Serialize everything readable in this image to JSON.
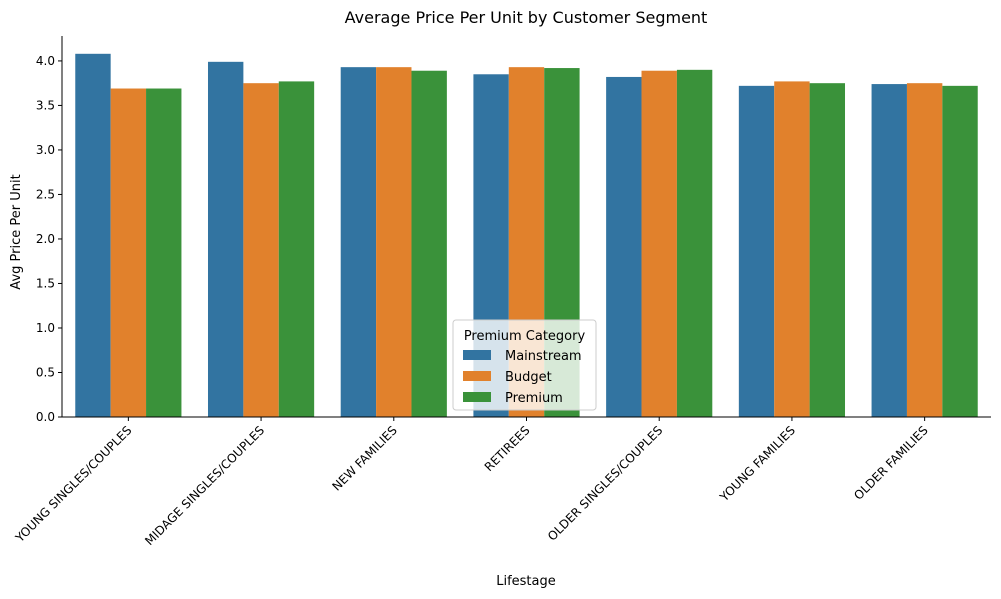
{
  "chart_data": {
    "type": "bar",
    "title": "Average Price Per Unit by Customer Segment",
    "xlabel": "Lifestage",
    "ylabel": "Avg Price Per Unit",
    "ylim": [
      0,
      4.28
    ],
    "yticks": [
      "0.0",
      "0.5",
      "1.0",
      "1.5",
      "2.0",
      "2.5",
      "3.0",
      "3.5",
      "4.0"
    ],
    "categories": [
      "YOUNG SINGLES/COUPLES",
      "MIDAGE SINGLES/COUPLES",
      "NEW FAMILIES",
      "RETIREES",
      "OLDER SINGLES/COUPLES",
      "YOUNG FAMILIES",
      "OLDER FAMILIES"
    ],
    "series": [
      {
        "name": "Mainstream",
        "color": "#3274a1",
        "values": [
          4.08,
          3.99,
          3.93,
          3.85,
          3.82,
          3.72,
          3.74
        ]
      },
      {
        "name": "Budget",
        "color": "#e1812c",
        "values": [
          3.69,
          3.75,
          3.93,
          3.93,
          3.89,
          3.77,
          3.75
        ]
      },
      {
        "name": "Premium",
        "color": "#3a923a",
        "values": [
          3.69,
          3.77,
          3.89,
          3.92,
          3.9,
          3.75,
          3.72
        ]
      }
    ],
    "legend": {
      "title": "Premium Category",
      "placement": "lower-center"
    },
    "grid": false
  }
}
